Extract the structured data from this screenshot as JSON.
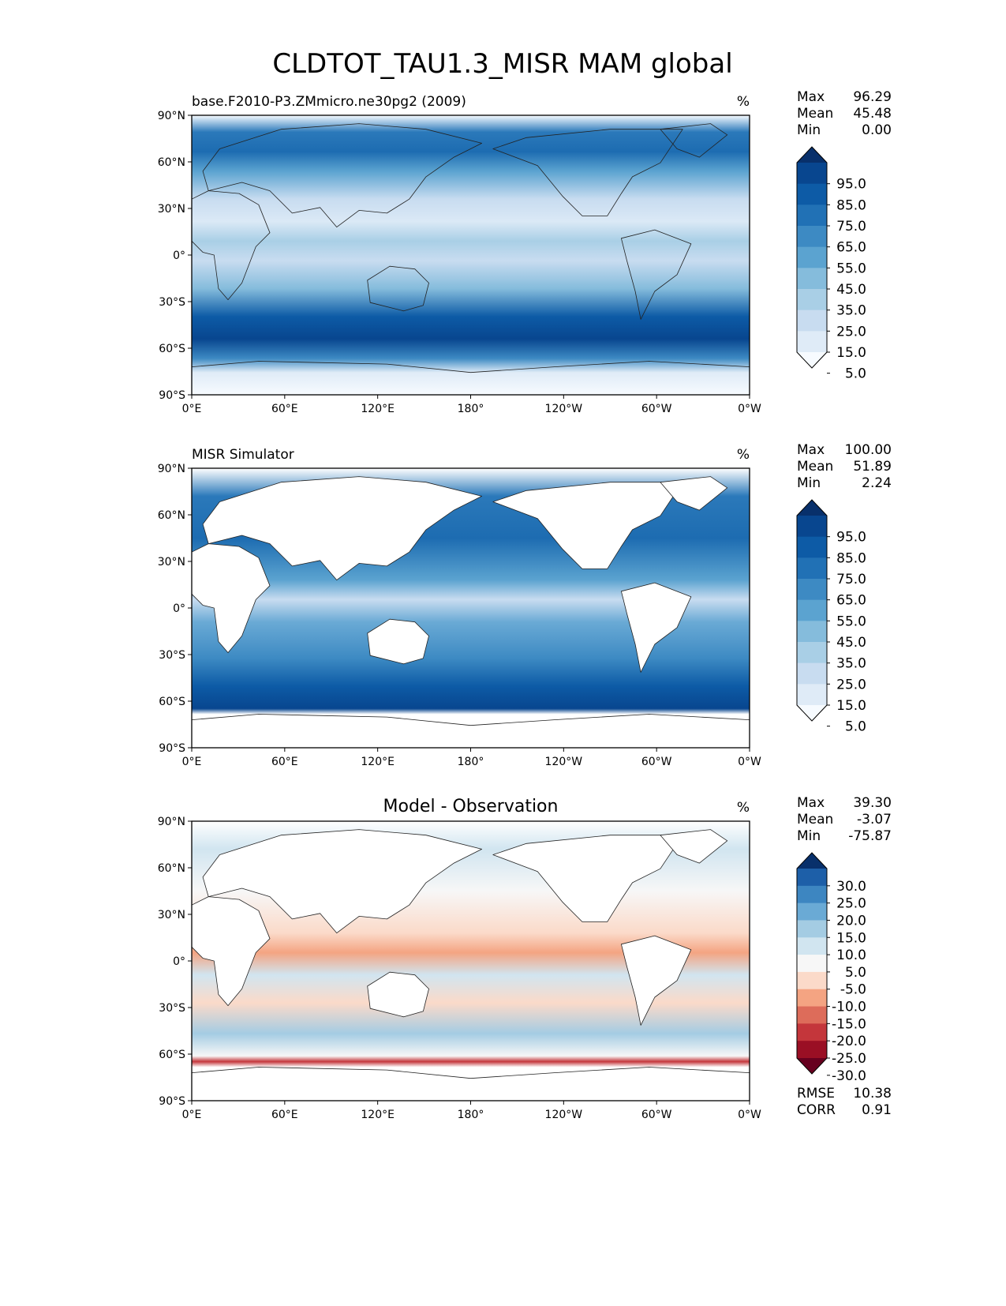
{
  "title": "CLDTOT_TAU1.3_MISR MAM global",
  "lon_ticks": [
    "0°E",
    "60°E",
    "120°E",
    "180°",
    "120°W",
    "60°W",
    "0°W"
  ],
  "lat_ticks": [
    "90°N",
    "60°N",
    "30°N",
    "0°",
    "30°S",
    "60°S",
    "90°S"
  ],
  "panels": [
    {
      "title_left": "base.F2010-P3.ZMmicro.ne30pg2 (2009)",
      "title_center": "",
      "units": "%",
      "stats": [
        {
          "label": "Max",
          "value": "96.29"
        },
        {
          "label": "Mean",
          "value": "45.48"
        },
        {
          "label": "Min",
          "value": "0.00"
        }
      ],
      "colorbar_labels": [
        "95.0",
        "85.0",
        "75.0",
        "65.0",
        "55.0",
        "45.0",
        "35.0",
        "25.0",
        "15.0",
        "5.0"
      ],
      "colorbar_colors": [
        "#08306b",
        "#08468f",
        "#0d5ba6",
        "#2171b5",
        "#3d8ac3",
        "#5ba3d0",
        "#85bcdc",
        "#a9cfe6",
        "#c8dcf0",
        "#dfebf7",
        "#f7fbff"
      ],
      "extra_stats": []
    },
    {
      "title_left": "MISR Simulator",
      "title_center": "",
      "units": "%",
      "stats": [
        {
          "label": "Max",
          "value": "100.00"
        },
        {
          "label": "Mean",
          "value": "51.89"
        },
        {
          "label": "Min",
          "value": "2.24"
        }
      ],
      "colorbar_labels": [
        "95.0",
        "85.0",
        "75.0",
        "65.0",
        "55.0",
        "45.0",
        "35.0",
        "25.0",
        "15.0",
        "5.0"
      ],
      "colorbar_colors": [
        "#08306b",
        "#08468f",
        "#0d5ba6",
        "#2171b5",
        "#3d8ac3",
        "#5ba3d0",
        "#85bcdc",
        "#a9cfe6",
        "#c8dcf0",
        "#dfebf7",
        "#f7fbff"
      ],
      "extra_stats": []
    },
    {
      "title_left": "",
      "title_center": "Model - Observation",
      "units": "%",
      "stats": [
        {
          "label": "Max",
          "value": "39.30"
        },
        {
          "label": "Mean",
          "value": "-3.07"
        },
        {
          "label": "Min",
          "value": "-75.87"
        }
      ],
      "colorbar_labels": [
        "30.0",
        "25.0",
        "20.0",
        "15.0",
        "10.0",
        "5.0",
        "-5.0",
        "-10.0",
        "-15.0",
        "-20.0",
        "-25.0",
        "-30.0"
      ],
      "colorbar_colors": [
        "#08306b",
        "#1d5fa8",
        "#3d86c1",
        "#6aaad5",
        "#a4cce3",
        "#d1e5f0",
        "#f7f7f7",
        "#fbdac9",
        "#f4a482",
        "#dd6c5a",
        "#c4363b",
        "#9a0f24",
        "#67001f"
      ],
      "extra_stats": [
        {
          "label": "RMSE",
          "value": "10.38"
        },
        {
          "label": "CORR",
          "value": "0.91"
        }
      ]
    }
  ]
}
